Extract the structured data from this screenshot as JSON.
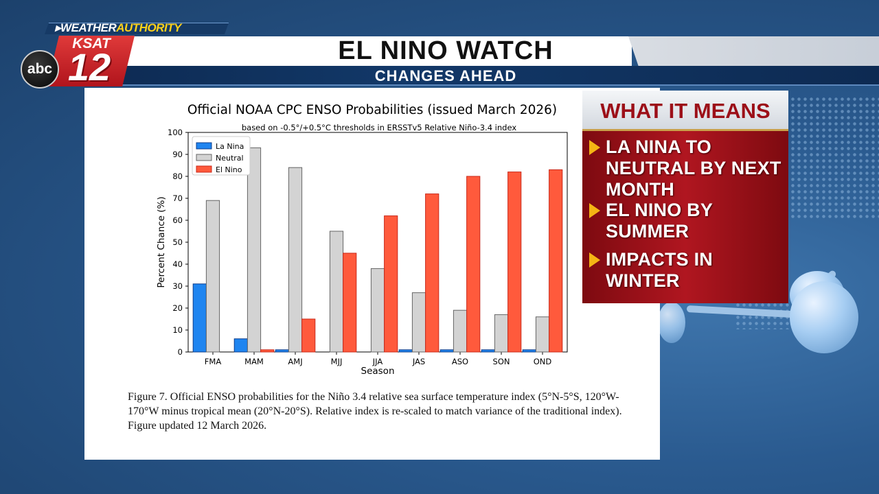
{
  "header": {
    "brand_weather": "WEATHER",
    "brand_authority": "AUTHORITY",
    "station": "KSAT",
    "channel": "12",
    "network": "abc",
    "title": "EL NINO WATCH",
    "subtitle": "CHANGES AHEAD"
  },
  "panel": {
    "title": "WHAT IT MEANS",
    "bullets": [
      "LA NINA TO NEUTRAL BY NEXT MONTH",
      "EL NINO BY SUMMER",
      "IMPACTS IN WINTER"
    ]
  },
  "figure": {
    "caption": "Figure 7. Official ENSO probabilities for the Niño 3.4 relative sea surface temperature index (5°N-5°S, 120°W-170°W minus tropical mean (20°N-20°S). Relative index is re-scaled to match variance of the traditional index). Figure updated 12 March 2026."
  },
  "colors": {
    "la_nina": "#1f85f0",
    "neutral": "#d3d3d3",
    "el_nino": "#ff5a3c",
    "la_nina_edge": "#0d3c8a",
    "neutral_edge": "#666666",
    "el_nino_edge": "#c8281a"
  },
  "chart_data": {
    "type": "bar",
    "title": "Official NOAA CPC ENSO Probabilities (issued March 2026)",
    "subtitle": "based on -0.5°/+0.5°C thresholds in ERSSTv5 Relative Niño-3.4 index",
    "xlabel": "Season",
    "ylabel": "Percent Chance (%)",
    "ylim": [
      0,
      100
    ],
    "yticks": [
      0,
      10,
      20,
      30,
      40,
      50,
      60,
      70,
      80,
      90,
      100
    ],
    "categories": [
      "FMA",
      "MAM",
      "AMJ",
      "MJJ",
      "JJA",
      "JAS",
      "ASO",
      "SON",
      "OND"
    ],
    "legend_position": "top-left",
    "grid": false,
    "series": [
      {
        "name": "La Nina",
        "key": "la_nina",
        "values": [
          31,
          6,
          1,
          0,
          0,
          1,
          1,
          1,
          1
        ]
      },
      {
        "name": "Neutral",
        "key": "neutral",
        "values": [
          69,
          93,
          84,
          55,
          38,
          27,
          19,
          17,
          16
        ]
      },
      {
        "name": "El Nino",
        "key": "el_nino",
        "values": [
          0,
          1,
          15,
          45,
          62,
          72,
          80,
          82,
          83
        ]
      }
    ]
  }
}
